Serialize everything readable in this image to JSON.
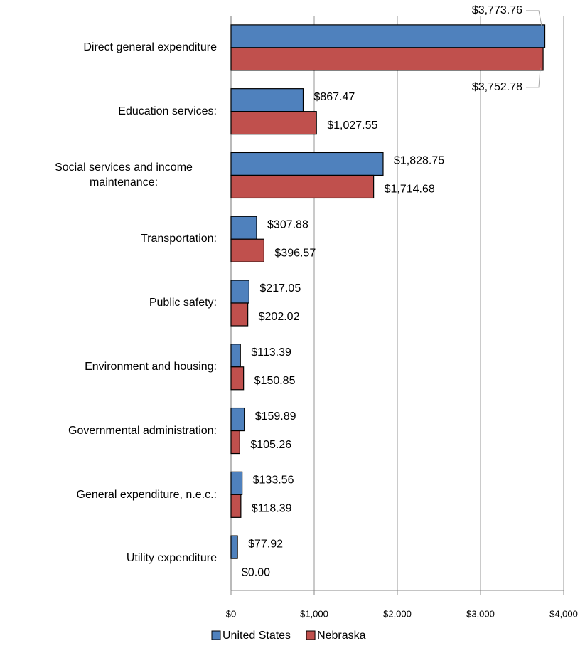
{
  "chart_data": {
    "type": "bar",
    "orientation": "horizontal",
    "categories": [
      "Direct general expenditure",
      "Education services:",
      "Social services and income maintenance:",
      "Transportation:",
      "Public safety:",
      "Environment and housing:",
      "Governmental administration:",
      "General expenditure, n.e.c.:",
      "Utility expenditure"
    ],
    "series": [
      {
        "name": "United States",
        "color": "#4f81bd",
        "values": [
          3773.76,
          867.47,
          1828.75,
          307.88,
          217.05,
          113.39,
          159.89,
          133.56,
          77.92
        ],
        "value_labels": [
          "$3,773.76",
          "$867.47",
          "$1,828.75",
          "$307.88",
          "$217.05",
          "$113.39",
          "$159.89",
          "$133.56",
          "$77.92"
        ]
      },
      {
        "name": "Nebraska",
        "color": "#c0504d",
        "values": [
          3752.78,
          1027.55,
          1714.68,
          396.57,
          202.02,
          150.85,
          105.26,
          118.39,
          0
        ],
        "value_labels": [
          "$3,752.78",
          "$1,027.55",
          "$1,714.68",
          "$396.57",
          "$202.02",
          "$150.85",
          "$105.26",
          "$118.39",
          "$0.00"
        ]
      }
    ],
    "xlim": [
      0,
      4000
    ],
    "xticks": [
      {
        "value": 0,
        "label": "$0"
      },
      {
        "value": 1000,
        "label": "$1,000"
      },
      {
        "value": 2000,
        "label": "$2,000"
      },
      {
        "value": 3000,
        "label": "$3,000"
      },
      {
        "value": 4000,
        "label": "$4,000"
      }
    ],
    "grid": true,
    "legend": "bottom"
  }
}
